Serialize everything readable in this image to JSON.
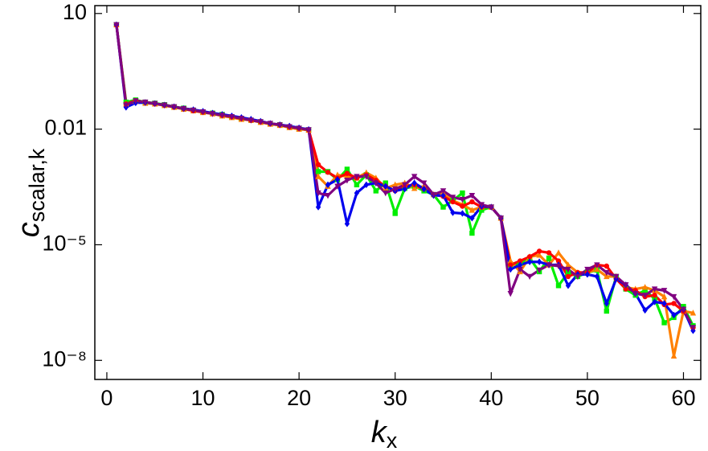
{
  "chart_data": {
    "type": "line",
    "xlabel": {
      "text": "k",
      "subscript": "x"
    },
    "ylabel": {
      "text": "c",
      "subscript": "scalar,k"
    },
    "x": [
      1,
      2,
      3,
      4,
      5,
      6,
      7,
      8,
      9,
      10,
      11,
      12,
      13,
      14,
      15,
      16,
      17,
      18,
      19,
      20,
      21,
      22,
      23,
      24,
      25,
      26,
      27,
      28,
      29,
      30,
      31,
      32,
      33,
      34,
      35,
      36,
      37,
      38,
      39,
      40,
      41,
      42,
      43,
      44,
      45,
      46,
      47,
      48,
      49,
      50,
      51,
      52,
      53,
      54,
      55,
      56,
      57,
      58,
      59,
      60,
      61
    ],
    "xlim": [
      -1.25,
      61.8
    ],
    "xticks": [
      0,
      10,
      20,
      30,
      40,
      50,
      60
    ],
    "ylim": [
      3.2e-09,
      16
    ],
    "yticks": [
      10,
      0.01,
      {
        "value": 1e-05,
        "label": "10⁻⁵"
      },
      {
        "value": 1e-08,
        "label": "10⁻⁸"
      }
    ],
    "log_y": true,
    "series": [
      {
        "color": "#00ee00",
        "marker": "square",
        "values": [
          5.1,
          0.05,
          0.057,
          0.05,
          0.047,
          0.043,
          0.038,
          0.035,
          0.031,
          0.028,
          0.026,
          0.024,
          0.021,
          0.019,
          0.017,
          0.0155,
          0.014,
          0.013,
          0.0115,
          0.0105,
          0.0096,
          0.00079,
          0.00079,
          0.00049,
          0.00091,
          0.00036,
          0.00065,
          0.00025,
          0.0004,
          6.5e-05,
          0.00029,
          0.00033,
          0.00025,
          0.0002,
          9.5e-05,
          0.00014,
          0.00022,
          2e-05,
          7.9e-05,
          9.5e-05,
          4.9e-05,
          3e-06,
          3.3e-06,
          4.5e-06,
          2e-06,
          4.5e-06,
          8.7e-07,
          1.9e-06,
          1.5e-06,
          1.9e-06,
          2.2e-06,
          1.9e-07,
          1.5e-06,
          7.1e-07,
          4.9e-07,
          6.5e-07,
          4e-07,
          9.5e-08,
          1.3e-07,
          2.5e-07,
          7.9e-08
        ]
      },
      {
        "color": "#ff8000",
        "marker": "triangle",
        "values": [
          5.1,
          0.045,
          0.052,
          0.047,
          0.045,
          0.041,
          0.037,
          0.033,
          0.03,
          0.027,
          0.025,
          0.022,
          0.02,
          0.018,
          0.017,
          0.015,
          0.0135,
          0.0125,
          0.011,
          0.01,
          0.0094,
          0.00059,
          0.00033,
          0.00065,
          0.00059,
          0.00054,
          0.00074,
          0.00054,
          0.00029,
          0.00036,
          0.0004,
          0.00029,
          0.00033,
          0.0002,
          0.00022,
          0.00014,
          0.00011,
          7.9e-05,
          9.5e-05,
          9.5e-05,
          4.9e-05,
          3.8e-06,
          2e-06,
          4.9e-06,
          5.4e-06,
          3e-06,
          6.2e-06,
          3e-06,
          1.9e-06,
          1.9e-06,
          2.3e-06,
          1.5e-06,
          1.5e-06,
          7.9e-07,
          7.1e-07,
          7.9e-07,
          6.5e-07,
          4.5e-07,
          1.3e-08,
          1.9e-07,
          1.7e-07
        ]
      },
      {
        "color": "#ff0000",
        "marker": "circle",
        "values": [
          5.1,
          0.045,
          0.055,
          0.05,
          0.046,
          0.042,
          0.038,
          0.034,
          0.03,
          0.028,
          0.026,
          0.023,
          0.021,
          0.019,
          0.017,
          0.0155,
          0.014,
          0.013,
          0.0115,
          0.0105,
          0.0096,
          0.0012,
          0.00076,
          0.00054,
          0.00071,
          0.00054,
          0.00065,
          0.00047,
          0.00033,
          0.00025,
          0.00033,
          0.00036,
          0.00028,
          0.0002,
          0.00018,
          0.00013,
          0.0001,
          0.00013,
          9.5e-05,
          9.5e-05,
          4.9e-05,
          3e-06,
          3.8e-06,
          4.9e-06,
          6.8e-06,
          6.2e-06,
          3.8e-06,
          1.5e-06,
          1.9e-06,
          1.9e-06,
          3e-06,
          2.8e-06,
          1.3e-06,
          7.1e-07,
          6.5e-07,
          4.5e-07,
          4.9e-07,
          2.8e-07,
          3e-07,
          1.9e-07,
          7.1e-08
        ]
      },
      {
        "color": "#0000ee",
        "marker": "diamond",
        "values": [
          5.1,
          0.037,
          0.048,
          0.049,
          0.046,
          0.042,
          0.038,
          0.034,
          0.032,
          0.029,
          0.026,
          0.024,
          0.022,
          0.02,
          0.018,
          0.016,
          0.014,
          0.013,
          0.012,
          0.0108,
          0.0098,
          9.5e-05,
          0.00036,
          0.00049,
          3.5e-05,
          0.00022,
          0.00036,
          0.0004,
          0.00033,
          0.00025,
          0.00028,
          0.0004,
          0.00028,
          0.00019,
          0.00019,
          6.8e-05,
          6.5e-05,
          4.9e-05,
          0.0001,
          9.5e-05,
          4.9e-05,
          2.3e-06,
          3e-06,
          3.6e-06,
          3.6e-06,
          3e-06,
          3e-06,
          8.7e-07,
          1.7e-06,
          1.7e-06,
          1.5e-06,
          3e-07,
          1.3e-06,
          9.1e-07,
          5.4e-07,
          2e-07,
          3.3e-07,
          3e-07,
          1.5e-07,
          2.1e-07,
          5.9e-08
        ]
      },
      {
        "color": "#800080",
        "marker": "triangle-down",
        "values": [
          5.1,
          0.042,
          0.054,
          0.05,
          0.046,
          0.042,
          0.038,
          0.034,
          0.031,
          0.028,
          0.025,
          0.023,
          0.021,
          0.019,
          0.017,
          0.0155,
          0.014,
          0.0128,
          0.0115,
          0.0105,
          0.0096,
          0.00022,
          0.00019,
          0.00033,
          0.00047,
          0.00059,
          0.00059,
          0.0004,
          0.00022,
          0.00028,
          0.00036,
          0.00059,
          0.0004,
          0.0002,
          0.00025,
          0.00017,
          0.00015,
          0.00019,
          0.00011,
          9.5e-05,
          4.9e-05,
          5.4e-07,
          2.3e-06,
          1.5e-06,
          2.2e-06,
          3e-06,
          2.8e-06,
          2.3e-06,
          1.5e-06,
          2.3e-06,
          3e-06,
          1.9e-06,
          1.5e-06,
          9.1e-07,
          5.4e-07,
          4.9e-07,
          7.1e-07,
          6.5e-07,
          4.5e-07,
          2.1e-07,
          7.1e-08
        ]
      }
    ]
  }
}
